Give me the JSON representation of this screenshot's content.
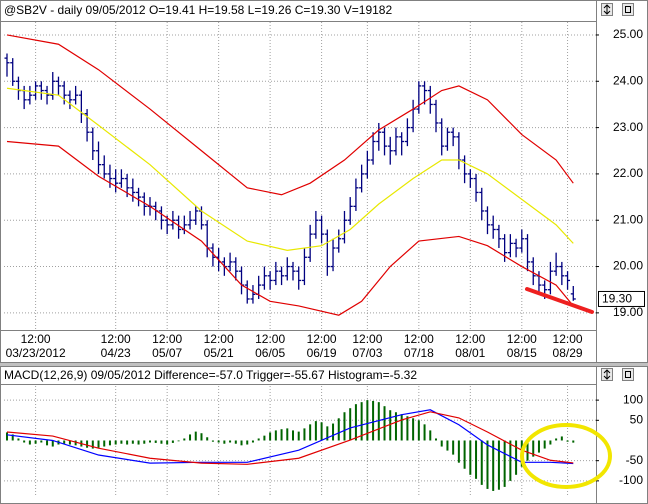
{
  "chart_data": [
    {
      "type": "ohlc",
      "title": "@SB2V - daily 09/05/2012 O=19.41 H=19.58 L=19.26 C=19.30 V=19182",
      "color": "#000080",
      "ohlc": [
        [
          24.5,
          24.6,
          24.1,
          24.4
        ],
        [
          24.4,
          24.5,
          23.9,
          24.0
        ],
        [
          24.0,
          24.1,
          23.6,
          23.8
        ],
        [
          23.8,
          23.9,
          23.4,
          23.6
        ],
        [
          23.6,
          23.9,
          23.5,
          23.7
        ],
        [
          23.7,
          24.0,
          23.6,
          23.9
        ],
        [
          23.9,
          24.0,
          23.6,
          23.8
        ],
        [
          23.8,
          23.9,
          23.5,
          23.7
        ],
        [
          23.7,
          24.2,
          23.6,
          24.0
        ],
        [
          24.0,
          24.1,
          23.7,
          23.9
        ],
        [
          23.9,
          24.0,
          23.5,
          23.7
        ],
        [
          23.7,
          23.8,
          23.4,
          23.6
        ],
        [
          23.6,
          23.9,
          23.5,
          23.7
        ],
        [
          23.7,
          23.8,
          23.1,
          23.3
        ],
        [
          23.3,
          23.4,
          22.7,
          22.9
        ],
        [
          22.9,
          23.0,
          22.3,
          22.5
        ],
        [
          22.5,
          22.7,
          22.0,
          22.2
        ],
        [
          22.2,
          22.4,
          21.9,
          22.0
        ],
        [
          22.0,
          22.2,
          21.7,
          21.9
        ],
        [
          21.9,
          22.1,
          21.6,
          21.8
        ],
        [
          21.8,
          22.1,
          21.7,
          21.9
        ],
        [
          21.9,
          22.0,
          21.5,
          21.7
        ],
        [
          21.7,
          21.9,
          21.4,
          21.6
        ],
        [
          21.6,
          21.7,
          21.3,
          21.5
        ],
        [
          21.5,
          21.6,
          21.1,
          21.3
        ],
        [
          21.3,
          21.5,
          21.1,
          21.3
        ],
        [
          21.3,
          21.4,
          21.0,
          21.2
        ],
        [
          21.2,
          21.3,
          20.8,
          21.0
        ],
        [
          21.0,
          21.1,
          20.7,
          20.9
        ],
        [
          20.9,
          21.2,
          20.8,
          21.0
        ],
        [
          21.0,
          21.1,
          20.6,
          20.8
        ],
        [
          20.8,
          21.1,
          20.7,
          20.9
        ],
        [
          20.9,
          21.2,
          20.8,
          21.0
        ],
        [
          21.0,
          21.3,
          20.9,
          21.2
        ],
        [
          21.2,
          21.3,
          20.8,
          20.9
        ],
        [
          20.9,
          21.0,
          20.2,
          20.4
        ],
        [
          20.4,
          20.5,
          20.0,
          20.2
        ],
        [
          20.2,
          20.4,
          19.9,
          20.1
        ],
        [
          20.1,
          20.2,
          19.8,
          20.0
        ],
        [
          20.0,
          20.3,
          19.9,
          20.1
        ],
        [
          20.1,
          20.2,
          19.7,
          19.9
        ],
        [
          19.9,
          20.0,
          19.4,
          19.6
        ],
        [
          19.6,
          19.7,
          19.2,
          19.3
        ],
        [
          19.3,
          19.6,
          19.2,
          19.4
        ],
        [
          19.4,
          19.8,
          19.3,
          19.6
        ],
        [
          19.6,
          20.0,
          19.5,
          19.8
        ],
        [
          19.8,
          19.9,
          19.5,
          19.7
        ],
        [
          19.7,
          20.1,
          19.6,
          19.9
        ],
        [
          19.9,
          20.0,
          19.6,
          19.8
        ],
        [
          19.8,
          20.2,
          19.7,
          20.0
        ],
        [
          20.0,
          20.1,
          19.7,
          19.9
        ],
        [
          19.9,
          20.0,
          19.5,
          19.7
        ],
        [
          19.7,
          20.4,
          19.6,
          20.2
        ],
        [
          20.2,
          20.9,
          20.1,
          20.7
        ],
        [
          20.7,
          21.2,
          20.6,
          21.0
        ],
        [
          21.0,
          21.1,
          20.5,
          20.7
        ],
        [
          20.7,
          20.8,
          19.8,
          20.0
        ],
        [
          20.0,
          20.6,
          19.9,
          20.4
        ],
        [
          20.4,
          20.8,
          20.3,
          20.6
        ],
        [
          20.6,
          21.2,
          20.5,
          21.0
        ],
        [
          21.0,
          21.5,
          20.9,
          21.3
        ],
        [
          21.3,
          21.9,
          21.2,
          21.7
        ],
        [
          21.7,
          22.2,
          21.6,
          22.0
        ],
        [
          22.0,
          22.5,
          21.9,
          22.3
        ],
        [
          22.3,
          22.9,
          22.2,
          22.7
        ],
        [
          22.7,
          23.1,
          22.5,
          22.9
        ],
        [
          22.9,
          23.0,
          22.4,
          22.6
        ],
        [
          22.6,
          22.8,
          22.2,
          22.5
        ],
        [
          22.5,
          23.0,
          22.4,
          22.8
        ],
        [
          22.8,
          22.9,
          22.4,
          22.7
        ],
        [
          22.7,
          23.2,
          22.6,
          23.0
        ],
        [
          23.0,
          23.6,
          22.9,
          23.4
        ],
        [
          23.4,
          24.0,
          23.3,
          23.9
        ],
        [
          23.9,
          24.0,
          23.5,
          23.8
        ],
        [
          23.8,
          23.9,
          23.3,
          23.5
        ],
        [
          23.5,
          23.6,
          22.9,
          23.1
        ],
        [
          23.1,
          23.2,
          22.4,
          22.6
        ],
        [
          22.6,
          23.0,
          22.5,
          22.9
        ],
        [
          22.9,
          23.0,
          22.6,
          22.8
        ],
        [
          22.8,
          22.9,
          22.1,
          22.3
        ],
        [
          22.3,
          22.4,
          21.8,
          22.0
        ],
        [
          22.0,
          22.1,
          21.7,
          21.9
        ],
        [
          21.9,
          22.0,
          21.4,
          21.6
        ],
        [
          21.6,
          21.7,
          21.0,
          21.2
        ],
        [
          21.2,
          21.3,
          20.7,
          20.9
        ],
        [
          20.9,
          21.1,
          20.6,
          20.8
        ],
        [
          20.8,
          20.9,
          20.4,
          20.6
        ],
        [
          20.6,
          20.7,
          20.1,
          20.3
        ],
        [
          20.3,
          20.7,
          20.2,
          20.5
        ],
        [
          20.5,
          20.6,
          20.2,
          20.4
        ],
        [
          20.4,
          20.8,
          20.3,
          20.6
        ],
        [
          20.6,
          20.7,
          19.9,
          20.1
        ],
        [
          20.1,
          20.2,
          19.6,
          19.8
        ],
        [
          19.8,
          19.9,
          19.4,
          19.6
        ],
        [
          19.6,
          19.7,
          19.3,
          19.5
        ],
        [
          19.5,
          20.1,
          19.4,
          19.9
        ],
        [
          19.9,
          20.3,
          19.8,
          20.0
        ],
        [
          20.0,
          20.1,
          19.6,
          19.8
        ],
        [
          19.8,
          19.9,
          19.5,
          19.7
        ],
        [
          19.41,
          19.58,
          19.26,
          19.3
        ]
      ],
      "lines": [
        {
          "color": "#e00000",
          "x": [
            0,
            9,
            16,
            25,
            34,
            42,
            48,
            53,
            59,
            65,
            71,
            76,
            79,
            84,
            90,
            96,
            99
          ],
          "values": [
            25.0,
            24.8,
            24.25,
            23.4,
            22.5,
            21.7,
            21.55,
            21.8,
            22.3,
            22.95,
            23.4,
            23.8,
            23.9,
            23.6,
            22.85,
            22.3,
            21.8
          ]
        },
        {
          "color": "#e8e800",
          "x": [
            0,
            9,
            16,
            25,
            34,
            42,
            49,
            55,
            60,
            65,
            71,
            76,
            79,
            84,
            90,
            96,
            99
          ],
          "values": [
            23.85,
            23.7,
            23.05,
            22.2,
            21.2,
            20.55,
            20.35,
            20.45,
            20.8,
            21.35,
            21.9,
            22.3,
            22.3,
            22.0,
            21.45,
            20.9,
            20.5
          ]
        },
        {
          "color": "#e00000",
          "x": [
            0,
            9,
            16,
            25,
            34,
            41,
            46,
            51,
            58,
            62,
            67,
            72,
            79,
            84,
            90,
            96,
            99
          ],
          "values": [
            22.7,
            22.6,
            21.95,
            21.3,
            20.55,
            19.6,
            19.25,
            19.15,
            18.95,
            19.25,
            20.0,
            20.55,
            20.65,
            20.45,
            20.0,
            19.6,
            19.15
          ]
        }
      ],
      "last_price_label": "19.30",
      "ylim": [
        18.63,
        25.28
      ],
      "yticks": [
        {
          "value": 25,
          "label": "25.00"
        },
        {
          "value": 24,
          "label": "24.00"
        },
        {
          "value": 23,
          "label": "23.00"
        },
        {
          "value": 22,
          "label": "22.00"
        },
        {
          "value": 21,
          "label": "21.00"
        },
        {
          "value": 20,
          "label": "20.00"
        },
        {
          "value": 19,
          "label": "19.00"
        }
      ],
      "xtick_time": "12:00",
      "xticks": [
        {
          "value": 5,
          "label": "03/23/2012"
        },
        {
          "value": 19,
          "label": "04/23"
        },
        {
          "value": 28,
          "label": "05/07"
        },
        {
          "value": 37,
          "label": "05/21"
        },
        {
          "value": 46,
          "label": "06/05"
        },
        {
          "value": 55,
          "label": "06/19"
        },
        {
          "value": 63,
          "label": "07/03"
        },
        {
          "value": 72,
          "label": "07/18"
        },
        {
          "value": 81,
          "label": "08/01"
        },
        {
          "value": 90,
          "label": "08/15"
        },
        {
          "value": 98,
          "label": "08/29"
        }
      ],
      "grid": true
    },
    {
      "type": "macd",
      "title": "MACD(12,26,9) 09/05/2012 Difference=-57.0 Trigger=-55.67 Histogram=-5.32",
      "histogram": {
        "color": "#006400",
        "values": [
          20,
          15,
          5,
          -5,
          -10,
          -8,
          -5,
          -12,
          -15,
          -10,
          -8,
          -10,
          -12,
          -15,
          -18,
          -20,
          -18,
          -15,
          -12,
          -10,
          -8,
          -10,
          -8,
          -10,
          -8,
          -5,
          -6,
          -8,
          -10,
          -6,
          -2,
          5,
          15,
          22,
          18,
          8,
          -3,
          -5,
          -8,
          -5,
          -8,
          -12,
          -10,
          -5,
          5,
          12,
          20,
          25,
          28,
          30,
          25,
          22,
          30,
          40,
          48,
          45,
          35,
          42,
          55,
          70,
          80,
          90,
          95,
          100,
          98,
          95,
          85,
          75,
          70,
          65,
          60,
          55,
          50,
          40,
          25,
          5,
          -15,
          -25,
          -35,
          -55,
          -70,
          -85,
          -95,
          -110,
          -120,
          -125,
          -122,
          -115,
          -100,
          -85,
          -65,
          -50,
          -40,
          -30,
          -20,
          -10,
          5,
          10,
          -3,
          -5.32
        ]
      },
      "lines": [
        {
          "color": "#0000ff",
          "x": [
            0,
            8,
            16,
            25,
            34,
            42,
            51,
            60,
            69,
            74,
            79,
            84,
            90,
            95,
            99
          ],
          "values": [
            14,
            0,
            -36,
            -56,
            -54,
            -54,
            -24,
            31,
            64,
            76,
            39,
            -11,
            -54,
            -54,
            -57.0
          ]
        },
        {
          "color": "#e00000",
          "x": [
            0,
            8,
            16,
            25,
            34,
            42,
            51,
            60,
            69,
            74,
            79,
            84,
            90,
            95,
            99
          ],
          "values": [
            21,
            11,
            -19,
            -44,
            -56,
            -59,
            -44,
            1,
            51,
            71,
            56,
            21,
            -24,
            -49,
            -55.67
          ]
        }
      ],
      "ylim": [
        -140,
        135
      ],
      "yticks": [
        100,
        50,
        -50,
        -100
      ],
      "grid": true
    }
  ]
}
